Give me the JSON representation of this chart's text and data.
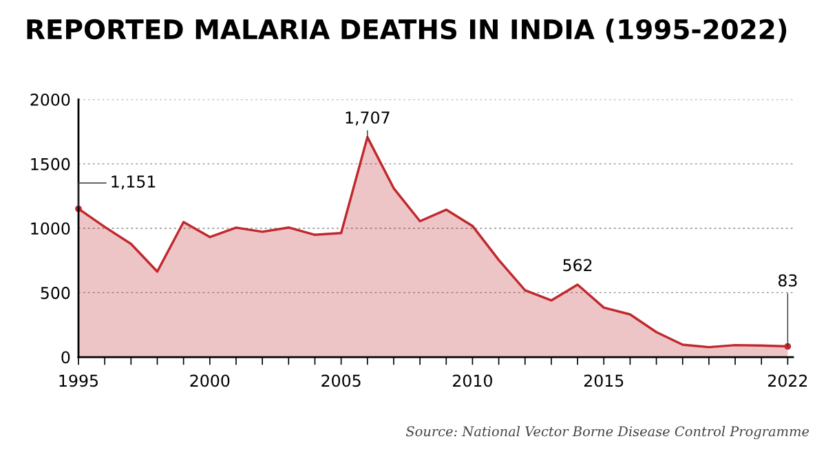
{
  "chart_data": {
    "type": "area",
    "title": "REPORTED MALARIA DEATHS IN INDIA (1995-2022)",
    "x": [
      1995,
      1996,
      1997,
      1998,
      1999,
      2000,
      2001,
      2002,
      2003,
      2004,
      2005,
      2006,
      2007,
      2008,
      2009,
      2010,
      2011,
      2012,
      2013,
      2014,
      2015,
      2016,
      2017,
      2018,
      2019,
      2020,
      2021,
      2022
    ],
    "series": [
      {
        "color": "#c0282d",
        "values": [
          1151,
          1010,
          879,
          664,
          1048,
          932,
          1005,
          973,
          1006,
          949,
          963,
          1707,
          1311,
          1055,
          1144,
          1018,
          754,
          519,
          440,
          562,
          384,
          331,
          194,
          96,
          77,
          93,
          90,
          83
        ],
        "value_labels": [
          "1,151",
          null,
          null,
          null,
          null,
          null,
          null,
          null,
          null,
          null,
          null,
          "1,707",
          null,
          null,
          null,
          null,
          null,
          null,
          null,
          "562",
          null,
          null,
          null,
          null,
          null,
          null,
          null,
          "83"
        ]
      }
    ],
    "xlim": [
      1995,
      2022.2
    ],
    "xticks": [
      1995,
      {
        "value": 1996,
        "label": null
      },
      {
        "value": 1997,
        "label": null
      },
      {
        "value": 1998,
        "label": null
      },
      {
        "value": 1999,
        "label": null
      },
      2000,
      {
        "value": 2001,
        "label": null
      },
      {
        "value": 2002,
        "label": null
      },
      {
        "value": 2003,
        "label": null
      },
      {
        "value": 2004,
        "label": null
      },
      2005,
      {
        "value": 2006,
        "label": null
      },
      {
        "value": 2007,
        "label": null
      },
      {
        "value": 2008,
        "label": null
      },
      {
        "value": 2009,
        "label": null
      },
      2010,
      {
        "value": 2011,
        "label": null
      },
      {
        "value": 2012,
        "label": null
      },
      {
        "value": 2013,
        "label": null
      },
      {
        "value": 2014,
        "label": null
      },
      2015,
      {
        "value": 2016,
        "label": null
      },
      {
        "value": 2017,
        "label": null
      },
      {
        "value": 2018,
        "label": null
      },
      {
        "value": 2019,
        "label": null
      },
      {
        "value": 2020,
        "label": null
      },
      {
        "value": 2021,
        "label": null
      },
      2022
    ],
    "ylim": [
      0,
      2000
    ],
    "yticks": [
      0,
      500,
      1000,
      1500,
      2000
    ],
    "grid": "y",
    "annotations": [
      "Source: National Vector Borne Disease Control Programme"
    ]
  }
}
